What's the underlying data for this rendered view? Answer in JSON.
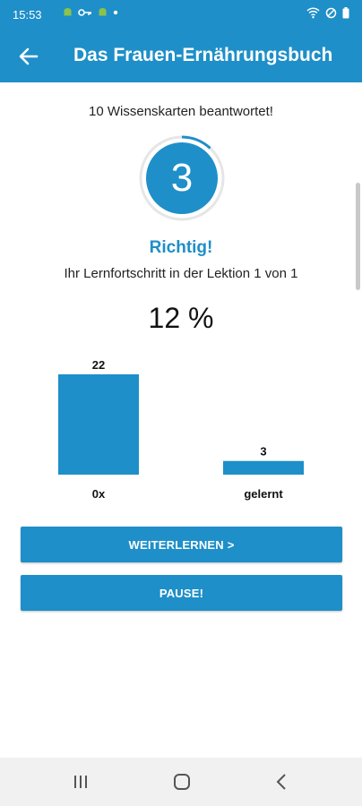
{
  "status_bar": {
    "time": "15:53"
  },
  "app_bar": {
    "title": "Das Frauen-Ernährungsbuch"
  },
  "quiz": {
    "answered_text": "10 Wissenskarten beantwortet!",
    "current_number": "3",
    "result": "Richtig!",
    "progress_text": "Ihr Lernfortschritt in der Lektion 1 von 1",
    "percent": "12 %",
    "circle_progress": 0.12
  },
  "chart_data": {
    "type": "bar",
    "categories": [
      "0x",
      "gelernt"
    ],
    "values": [
      22,
      3
    ],
    "title": "",
    "xlabel": "",
    "ylabel": ""
  },
  "buttons": {
    "continue_label": "WEITERLERNEN >",
    "pause_label": "PAUSE!"
  },
  "colors": {
    "primary": "#1e8fc8"
  }
}
